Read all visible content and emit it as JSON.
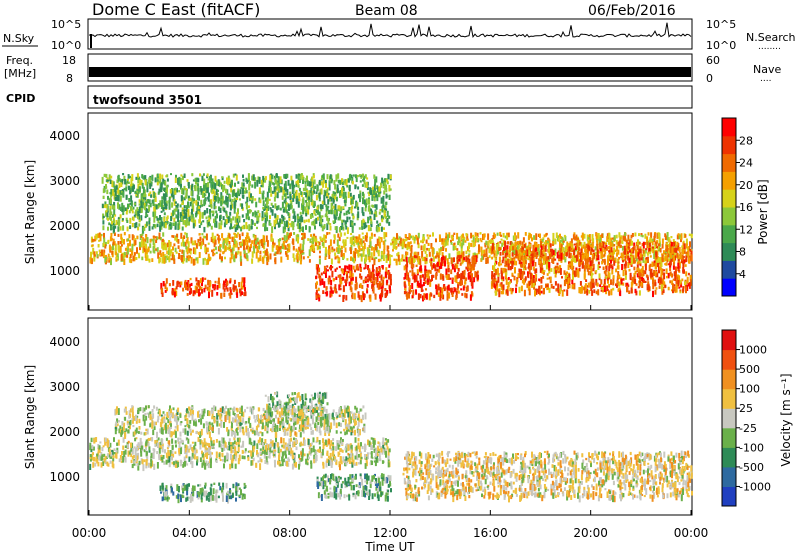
{
  "header": {
    "title": "Dome C East (fitACF)",
    "beam": "Beam 08",
    "date": "06/Feb/2016",
    "cpid_label": "CPID",
    "cpid_value": "twofsound 3501"
  },
  "strips": {
    "nsky": {
      "label": "N.Sky",
      "ticks_left": [
        "10^5",
        "10^0"
      ],
      "ticks_right": [
        "10^5",
        "10^0"
      ],
      "right_label": "N.Search",
      "right_dots": "........"
    },
    "freq": {
      "label_line1": "Freq.",
      "label_line2": "[MHz]",
      "ticks_left": [
        "18",
        "8"
      ],
      "ticks_right": [
        "60",
        "0"
      ],
      "right_label": "Nave",
      "right_dots": "...."
    }
  },
  "panels": [
    {
      "id": "power",
      "ylabel": "Slant Range [km]",
      "yticks": [
        "4000",
        "3000",
        "2000",
        "1000"
      ],
      "colorbar_label": "Power [dB]",
      "colorbar_ticks": [
        "28",
        "24",
        "20",
        "16",
        "12",
        "8",
        "4"
      ],
      "colors": [
        "#0000ff",
        "#1f4aa0",
        "#2e8b57",
        "#4aa84a",
        "#8cc83a",
        "#d6d21a",
        "#f5a000",
        "#f06a00",
        "#ee3300",
        "#ff0000"
      ]
    },
    {
      "id": "velocity",
      "ylabel": "Slant Range [km]",
      "yticks": [
        "4000",
        "3000",
        "2000",
        "1000"
      ],
      "colorbar_label": "Velocity [m s⁻¹]",
      "colorbar_ticks": [
        "1000",
        "500",
        "100",
        "25",
        "-25",
        "-100",
        "-500",
        "-1000"
      ],
      "colors": [
        "#2040c0",
        "#2e6aa0",
        "#2e8b57",
        "#6ab04a",
        "#c8c8c0",
        "#f0c040",
        "#f09020",
        "#f05010",
        "#e01010"
      ]
    }
  ],
  "xaxis": {
    "label": "Time UT",
    "ticks": [
      "00:00",
      "04:00",
      "08:00",
      "12:00",
      "16:00",
      "20:00",
      "00:00"
    ]
  },
  "chart_data": [
    {
      "type": "heatmap",
      "title": "Power",
      "xlabel": "Time UT",
      "ylabel": "Slant Range [km]",
      "xlim": [
        "00:00",
        "24:00"
      ],
      "ylim": [
        200,
        4500
      ],
      "colorbar_range": [
        0,
        32
      ],
      "colorbar_label": "Power [dB]",
      "regions": [
        {
          "t_start": 0.0,
          "t_end": 24.0,
          "range_low": 1300,
          "range_high": 1900,
          "value": 20
        },
        {
          "t_start": 2.8,
          "t_end": 6.2,
          "range_low": 550,
          "range_high": 900,
          "value": 26
        },
        {
          "t_start": 9.0,
          "t_end": 12.0,
          "range_low": 500,
          "range_high": 1200,
          "value": 27
        },
        {
          "t_start": 12.5,
          "t_end": 15.5,
          "range_low": 500,
          "range_high": 1400,
          "value": 26
        },
        {
          "t_start": 16.0,
          "t_end": 24.0,
          "range_low": 600,
          "range_high": 1700,
          "value": 24
        },
        {
          "t_start": 0.5,
          "t_end": 12.0,
          "range_low": 2000,
          "range_high": 3200,
          "value": 12
        }
      ]
    },
    {
      "type": "heatmap",
      "title": "Velocity",
      "xlabel": "Time UT",
      "ylabel": "Slant Range [km]",
      "xlim": [
        "00:00",
        "24:00"
      ],
      "ylim": [
        200,
        4500
      ],
      "colorbar_range": [
        -1000,
        1000
      ],
      "colorbar_label": "Velocity [m s^-1]",
      "regions": [
        {
          "t_start": 0.0,
          "t_end": 12.0,
          "range_low": 1300,
          "range_high": 1900,
          "value": 0
        },
        {
          "t_start": 2.8,
          "t_end": 6.2,
          "range_low": 550,
          "range_high": 900,
          "value": -300
        },
        {
          "t_start": 9.0,
          "t_end": 12.0,
          "range_low": 600,
          "range_high": 1100,
          "value": -300
        },
        {
          "t_start": 12.5,
          "t_end": 24.0,
          "range_low": 600,
          "range_high": 1600,
          "value": 150
        },
        {
          "t_start": 7.0,
          "t_end": 9.5,
          "range_low": 2300,
          "range_high": 2900,
          "value": -150
        },
        {
          "t_start": 1.0,
          "t_end": 11.0,
          "range_low": 2000,
          "range_high": 2600,
          "value": 0
        }
      ]
    }
  ]
}
